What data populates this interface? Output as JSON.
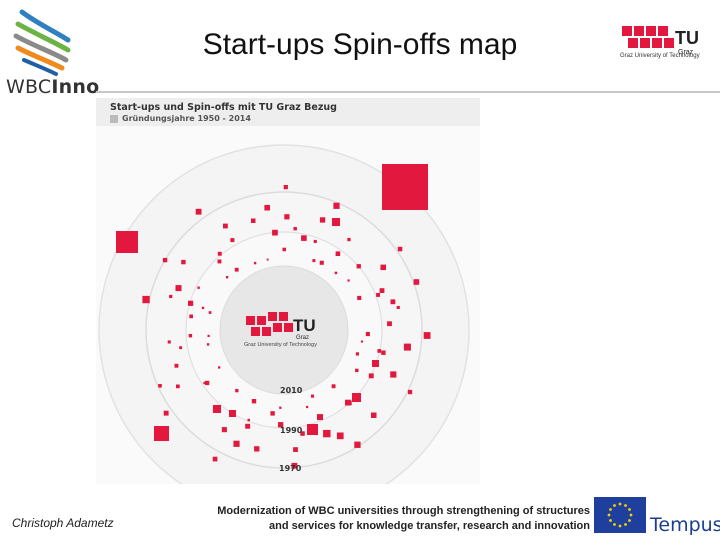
{
  "slide": {
    "title": "Start-ups Spin-offs map",
    "author": "Christoph Adametz",
    "footer_line1": "Modernization of WBC universities through strengthening of structures",
    "footer_line2": "and services for knowledge transfer, research and innovation"
  },
  "logos": {
    "wbc_prefix": "WBC",
    "wbc_suffix": "Inno",
    "tu_caption": "Graz University of Technology",
    "tu_letters": "TU",
    "tu_city": "Graz",
    "tempus": "Tempus"
  },
  "map": {
    "heading": "Start-ups und Spin-offs mit TU Graz Bezug",
    "subheading": "Gründungsjahre 1950 - 2014",
    "center_logo_letters": "TU",
    "center_logo_city": "Graz",
    "center_caption": "Graz University of Technology",
    "ring_labels": [
      "2010",
      "1990",
      "1970"
    ]
  },
  "colors": {
    "accent": "#e2183f",
    "tempus_blue": "#1b3f8e",
    "eu_blue": "#1f3f9e",
    "eu_star": "#f5d100"
  }
}
